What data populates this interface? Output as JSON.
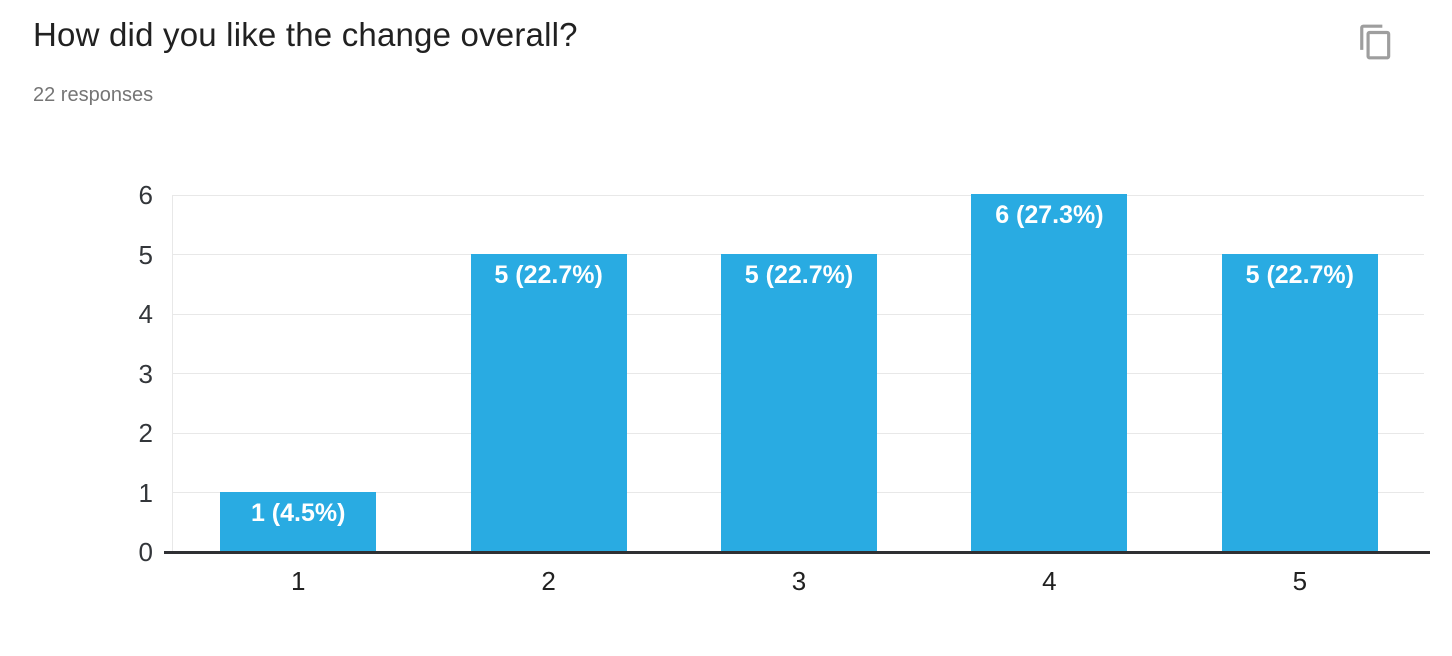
{
  "header": {
    "title": "How did you like the change overall?",
    "subtitle": "22 responses"
  },
  "toolbar": {
    "copy_icon": "content-copy-icon"
  },
  "chart_data": {
    "type": "bar",
    "title": "How did you like the change overall?",
    "categories": [
      "1",
      "2",
      "3",
      "4",
      "5"
    ],
    "values": [
      1,
      5,
      5,
      6,
      5
    ],
    "bar_labels": [
      "1 (4.5%)",
      "5 (22.7%)",
      "5 (22.7%)",
      "6 (27.3%)",
      "5 (22.7%)"
    ],
    "xlabel": "",
    "ylabel": "",
    "ylim": [
      0,
      6
    ],
    "yticks": [
      0,
      1,
      2,
      3,
      4,
      5,
      6
    ],
    "grid": true,
    "legend": "none",
    "bar_color": "#29abe2",
    "bar_label_color": "#ffffff",
    "grid_color": "#e8e8e8",
    "axis_color": "#2f3033",
    "tick_label_color": "#33363a"
  }
}
